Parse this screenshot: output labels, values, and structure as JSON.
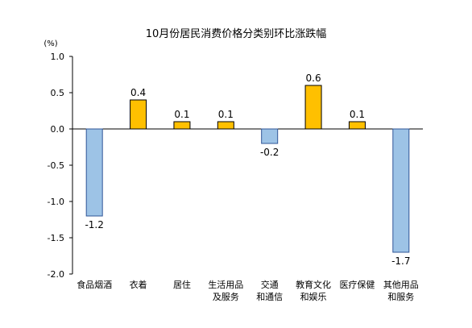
{
  "chart_data": {
    "type": "bar",
    "title": "10月份居民消费价格分类别环比涨跌幅",
    "ylabel": "(%)",
    "xlabel": "",
    "ylim": [
      -2.0,
      1.0
    ],
    "yticks": [
      "1.0",
      "0.5",
      "0.0",
      "-0.5",
      "-1.0",
      "-1.5",
      "-2.0"
    ],
    "ytick_values": [
      1.0,
      0.5,
      0.0,
      -0.5,
      -1.0,
      -1.5,
      -2.0
    ],
    "categories": [
      [
        "食品烟酒"
      ],
      [
        "衣着"
      ],
      [
        "居住"
      ],
      [
        "生活用品",
        "及服务"
      ],
      [
        "交通",
        "和通信"
      ],
      [
        "教育文化",
        "和娱乐"
      ],
      [
        "医疗保健"
      ],
      [
        "其他用品",
        "和服务"
      ]
    ],
    "values": [
      -1.2,
      0.4,
      0.1,
      0.1,
      -0.2,
      0.6,
      0.1,
      -1.7
    ],
    "value_labels": [
      "-1.2",
      "0.4",
      "0.1",
      "0.1",
      "-0.2",
      "0.6",
      "0.1",
      "-1.7"
    ],
    "colors": {
      "positive_fill": "#FFC000",
      "positive_stroke": "#000000",
      "negative_fill": "#9DC3E6",
      "negative_stroke": "#2F5597",
      "axis": "#000000"
    },
    "grid": false,
    "legend": "none"
  }
}
